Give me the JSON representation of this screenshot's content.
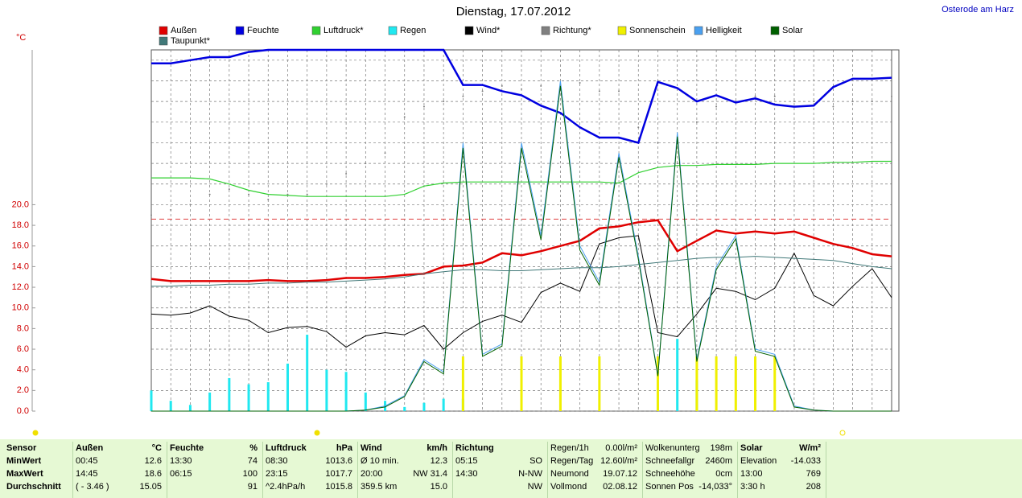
{
  "chart_data": {
    "type": "line",
    "title": "Dienstag, 17.07.2012",
    "location": "Osterode am Harz",
    "y_unit": "°C",
    "ylim": [
      0,
      35
    ],
    "yticks": [
      {
        "value": 0,
        "label": "0.0"
      },
      {
        "value": 2,
        "label": "2.0"
      },
      {
        "value": 4,
        "label": "4.0"
      },
      {
        "value": 6,
        "label": "6.0"
      },
      {
        "value": 8,
        "label": "8.0"
      },
      {
        "value": 10,
        "label": "10.0"
      },
      {
        "value": 12,
        "label": "12.0"
      },
      {
        "value": 14,
        "label": "14.0"
      },
      {
        "value": 16,
        "label": "16.0"
      },
      {
        "value": 18,
        "label": "18.0"
      },
      {
        "value": 20,
        "label": "20.0"
      }
    ],
    "ygrid": [
      22,
      24,
      26,
      28,
      30,
      32,
      34
    ],
    "max_line": 18.6,
    "series": [
      {
        "name": "Außen",
        "color": "#e00000",
        "style": "line",
        "width": 2.5,
        "values": [
          12.8,
          12.6,
          12.6,
          12.6,
          12.6,
          12.6,
          12.7,
          12.6,
          12.6,
          12.7,
          12.9,
          12.9,
          13.0,
          13.2,
          13.3,
          14.0,
          14.1,
          14.4,
          15.3,
          15.1,
          15.5,
          16.0,
          16.5,
          17.7,
          17.9,
          18.3,
          18.5,
          15.5,
          16.5,
          17.5,
          17.2,
          17.4,
          17.2,
          17.4,
          16.8,
          16.2,
          15.8,
          15.2,
          15.0
        ]
      },
      {
        "name": "Feuchte",
        "color": "#0000e0",
        "style": "line",
        "width": 2.5,
        "values": [
          33.7,
          33.7,
          34.0,
          34.3,
          34.3,
          34.8,
          35.0,
          35.0,
          35.0,
          35.0,
          35.0,
          35.0,
          35.0,
          35.0,
          35.0,
          35.0,
          31.6,
          31.6,
          31.0,
          30.6,
          29.6,
          28.9,
          27.5,
          26.5,
          26.5,
          26.0,
          31.9,
          31.3,
          30.0,
          30.6,
          29.9,
          30.3,
          29.7,
          29.5,
          29.6,
          31.4,
          32.2,
          32.2,
          32.3
        ]
      },
      {
        "name": "Luftdruck*",
        "color": "#30d030",
        "style": "line",
        "width": 1.2,
        "values": [
          22.6,
          22.6,
          22.6,
          22.5,
          22.0,
          21.4,
          21.0,
          20.9,
          20.8,
          20.8,
          20.8,
          20.8,
          20.8,
          21.0,
          21.8,
          22.1,
          22.2,
          22.2,
          22.2,
          22.2,
          22.2,
          22.2,
          22.2,
          22.2,
          22.1,
          23.1,
          23.6,
          23.8,
          23.8,
          23.9,
          23.9,
          23.9,
          24.0,
          24.0,
          24.0,
          24.1,
          24.1,
          24.2,
          24.2
        ]
      },
      {
        "name": "Regen",
        "color": "#20e8f0",
        "style": "bars",
        "values": [
          2,
          1,
          0.6,
          1.8,
          3.2,
          2.6,
          2.8,
          4.6,
          7.4,
          4,
          3.8,
          1.8,
          1,
          0.4,
          0.8,
          1.2,
          1.2,
          0,
          0,
          0,
          0,
          0,
          0,
          0,
          0,
          0,
          1.6,
          7,
          3,
          0,
          0,
          0,
          0,
          0,
          0,
          0,
          0,
          0,
          0
        ]
      },
      {
        "name": "Wind*",
        "color": "#000000",
        "style": "line",
        "width": 1,
        "values": [
          9.4,
          9.3,
          9.5,
          10.2,
          9.2,
          8.8,
          7.6,
          8.1,
          8.2,
          7.7,
          6.2,
          7.3,
          7.6,
          7.4,
          8.3,
          6.0,
          7.6,
          8.7,
          9.3,
          8.6,
          11.5,
          12.4,
          11.6,
          16.2,
          16.8,
          17.0,
          7.6,
          7.2,
          9.4,
          11.9,
          11.6,
          10.8,
          11.9,
          15.3,
          11.2,
          10.2,
          12.1,
          13.8,
          11.0
        ]
      },
      {
        "name": "Richtung*",
        "color": "#808080",
        "style": "dots",
        "values": [
          19,
          19.5,
          20,
          21,
          21.5,
          21,
          20.5,
          21,
          21,
          22,
          23,
          24,
          25,
          28.5,
          29.5,
          30,
          30.5,
          31,
          31.5,
          31.2,
          31.5,
          31.5,
          31.8,
          31,
          31,
          27.5,
          26,
          24,
          28,
          29.5,
          30,
          30.5,
          30.5,
          30,
          30,
          29.5,
          30,
          30,
          30.5
        ]
      },
      {
        "name": "Sonnenschein",
        "color": "#f0f000",
        "style": "bars",
        "values": [
          0,
          0,
          0,
          0,
          0,
          0,
          0,
          0,
          0,
          0,
          0,
          0,
          0,
          0,
          0,
          0,
          5.3,
          0,
          0,
          5.3,
          0,
          5.3,
          0,
          5.3,
          0,
          0,
          5.3,
          0,
          5.3,
          5.3,
          5.3,
          5.3,
          5.3,
          0,
          0,
          0,
          0,
          0,
          0
        ]
      },
      {
        "name": "Helligkeit",
        "color": "#4aa0f0",
        "style": "line",
        "width": 1,
        "values": [
          0,
          0,
          0,
          0,
          0,
          0,
          0,
          0,
          0,
          0,
          0,
          0.1,
          0.5,
          1.5,
          5,
          3.8,
          26,
          5.5,
          6.5,
          26,
          17,
          32,
          16,
          12.5,
          25,
          15,
          3.5,
          27,
          5,
          14,
          17,
          6,
          5.5,
          0.5,
          0.1,
          0,
          0,
          0,
          0
        ]
      },
      {
        "name": "Solar",
        "color": "#006000",
        "style": "line",
        "width": 1,
        "values": [
          0,
          0,
          0,
          0,
          0,
          0,
          0,
          0,
          0,
          0,
          0,
          0.1,
          0.4,
          1.4,
          4.8,
          3.6,
          25.5,
          5.3,
          6.3,
          25.5,
          16.6,
          31.5,
          15.6,
          12.2,
          24.6,
          14.7,
          3.4,
          26.6,
          4.8,
          13.7,
          16.7,
          5.8,
          5.3,
          0.4,
          0.1,
          0,
          0,
          0,
          0
        ]
      },
      {
        "name": "Taupunkt*",
        "color": "#407878",
        "style": "line",
        "width": 1,
        "values": [
          12.1,
          12.1,
          12.2,
          12.2,
          12.3,
          12.3,
          12.4,
          12.4,
          12.5,
          12.5,
          12.6,
          12.7,
          12.8,
          13.0,
          13.3,
          13.5,
          13.7,
          13.7,
          13.6,
          13.6,
          13.7,
          13.8,
          13.9,
          13.9,
          14.0,
          14.2,
          14.4,
          14.6,
          14.8,
          14.9,
          14.9,
          15.0,
          14.9,
          14.8,
          14.7,
          14.6,
          14.3,
          14.0,
          13.8
        ]
      }
    ]
  },
  "table": {
    "blocks": [
      {
        "header": {
          "left": "Sensor"
        },
        "rows": [
          {
            "left": "MinWert"
          },
          {
            "left": "MaxWert"
          },
          {
            "left": "Durchschnitt"
          }
        ]
      },
      {
        "header": {
          "left": "Außen",
          "right": "°C"
        },
        "rows": [
          {
            "left": "00:45",
            "right": "12.6"
          },
          {
            "left": "14:45",
            "right": "18.6"
          },
          {
            "left": "( - 3.46 )",
            "right": "15.05"
          }
        ]
      },
      {
        "header": {
          "left": "Feuchte",
          "right": "%"
        },
        "rows": [
          {
            "left": "13:30",
            "right": "74"
          },
          {
            "left": "06:15",
            "right": "100"
          },
          {
            "right": "91"
          }
        ]
      },
      {
        "header": {
          "left": "Luftdruck",
          "right": "hPa"
        },
        "rows": [
          {
            "left": "08:30",
            "right": "1013.6"
          },
          {
            "left": "23:15",
            "right": "1017.7"
          },
          {
            "left": "^2.4hPa/h",
            "right": "1015.8"
          }
        ]
      },
      {
        "header": {
          "left": "Wind",
          "right": "km/h"
        },
        "rows": [
          {
            "left": "Ø 10 min.",
            "right": "12.3"
          },
          {
            "left": "20:00",
            "right": "NW 31.4"
          },
          {
            "left": "359.5 km",
            "right": "15.0"
          }
        ]
      },
      {
        "header": {
          "left": "Richtung"
        },
        "rows": [
          {
            "left": "05:15",
            "right": "SO"
          },
          {
            "left": "14:30",
            "right": "N-NW"
          },
          {
            "right": "NW"
          }
        ]
      },
      {
        "rows": [
          {
            "left": "Regen/1h",
            "right": "0.00l/m²"
          },
          {
            "left": "Regen/Tag",
            "right": "12.60l/m²"
          },
          {
            "left": "Neumond",
            "right": "19.07.12"
          },
          {
            "left": "Vollmond",
            "right": "02.08.12"
          }
        ]
      },
      {
        "rows": [
          {
            "left": "Wolkenunterg",
            "right": "198m"
          },
          {
            "left": "Schneefallgr",
            "right": "2460m"
          },
          {
            "left": "Schneehöhe",
            "right": "0cm"
          },
          {
            "left": "Sonnen Pos",
            "right": "-14,033°"
          }
        ]
      },
      {
        "header": {
          "left": "Solar",
          "right": "W/m²"
        },
        "rows": [
          {
            "left": "Elevation",
            "right": "-14.033"
          },
          {
            "left": "13:00",
            "right": "769"
          },
          {
            "left": "3:30 h",
            "right": "208"
          }
        ]
      }
    ]
  }
}
